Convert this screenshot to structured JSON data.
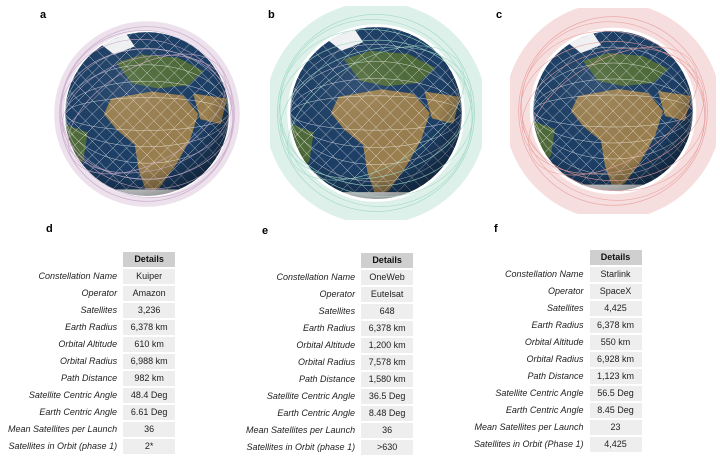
{
  "panels": [
    {
      "letter": "a"
    },
    {
      "letter": "b"
    },
    {
      "letter": "c"
    },
    {
      "letter": "d"
    },
    {
      "letter": "e"
    },
    {
      "letter": "f"
    }
  ],
  "tables": [
    {
      "header": "Details",
      "rows": [
        {
          "label": "Constellation Name",
          "value": "Kuiper"
        },
        {
          "label": "Operator",
          "value": "Amazon"
        },
        {
          "label": "Satellites",
          "value": "3,236"
        },
        {
          "label": "Earth Radius",
          "value": "6,378 km"
        },
        {
          "label": "Orbital Altitude",
          "value": "610 km"
        },
        {
          "label": "Orbital Radius",
          "value": "6,988 km"
        },
        {
          "label": "Path Distance",
          "value": "982 km"
        },
        {
          "label": "Satellite Centric Angle",
          "value": "48.4 Deg"
        },
        {
          "label": "Earth Centric Angle",
          "value": "6.61 Deg"
        },
        {
          "label": "Mean Satellites per Launch",
          "value": "36"
        },
        {
          "label": "Satellites in Orbit (phase 1)",
          "value": "2*"
        }
      ]
    },
    {
      "header": "Details",
      "rows": [
        {
          "label": "Constellation Name",
          "value": "OneWeb"
        },
        {
          "label": "Operator",
          "value": "Eutelsat"
        },
        {
          "label": "Satellites",
          "value": "648"
        },
        {
          "label": "Earth Radius",
          "value": "6,378 km"
        },
        {
          "label": "Orbital Altitude",
          "value": "1,200 km"
        },
        {
          "label": "Orbital Radius",
          "value": "7,578 km"
        },
        {
          "label": "Path Distance",
          "value": "1,580 km"
        },
        {
          "label": "Satellite Centric Angle",
          "value": "36.5 Deg"
        },
        {
          "label": "Earth Centric Angle",
          "value": "8.48 Deg"
        },
        {
          "label": "Mean Satellites per Launch",
          "value": "36"
        },
        {
          "label": "Satellites in Orbit (phase 1)",
          "value": ">630"
        }
      ]
    },
    {
      "header": "Details",
      "rows": [
        {
          "label": "Constellation Name",
          "value": "Starlink"
        },
        {
          "label": "Operator",
          "value": "SpaceX"
        },
        {
          "label": "Satellites",
          "value": "4,425"
        },
        {
          "label": "Earth Radius",
          "value": "6,378 km"
        },
        {
          "label": "Orbital Altitude",
          "value": "550 km"
        },
        {
          "label": "Orbital Radius",
          "value": "6,928 km"
        },
        {
          "label": "Path Distance",
          "value": "1,123 km"
        },
        {
          "label": "Satellite Centric Angle",
          "value": "56.5 Deg"
        },
        {
          "label": "Earth Centric Angle",
          "value": "8.45 Deg"
        },
        {
          "label": "Mean Satellites per Launch",
          "value": "23"
        },
        {
          "label": "Satellites in Orbit (Phase 1)",
          "value": "4,425"
        }
      ]
    }
  ],
  "colors": {
    "ocean": "#1d3f66",
    "land": "#9a7f4f",
    "vegetation": "#4f6b3a",
    "ice": "#f4f6f8",
    "orbit_a": "#c9a9c9",
    "orbit_b": "#9fd6c4",
    "orbit_c": "#e8a0a0"
  }
}
